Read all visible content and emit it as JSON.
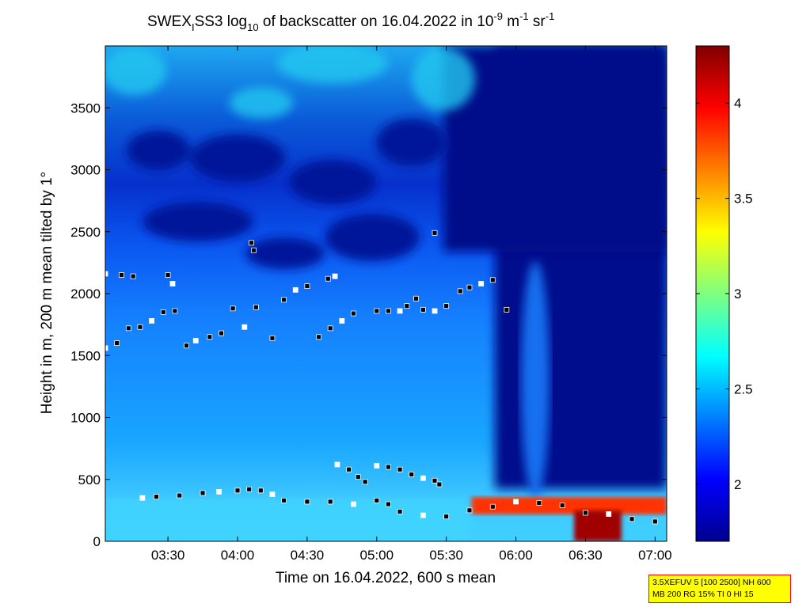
{
  "chart_data": {
    "type": "heatmap",
    "title": {
      "prefix": "SWEX",
      "sub1": "I",
      "mid": "SS3 log",
      "sub2": "10",
      "suffix": " of backscatter on 16.04.2022 in 10",
      "sup1": "-9",
      "unit1": " m",
      "sup2": "-1",
      "unit2": " sr",
      "sup3": "-1"
    },
    "xlabel": "Time on 16.04.2022, 600 s mean",
    "ylabel": "Height in m, 200 m mean tilted by 1°",
    "x_ticks": [
      "03:30",
      "04:00",
      "04:30",
      "05:00",
      "05:30",
      "06:00",
      "06:30",
      "07:00"
    ],
    "x_range_minutes": [
      183,
      425
    ],
    "y_ticks": [
      0,
      500,
      1000,
      1500,
      2000,
      2500,
      3000,
      3500
    ],
    "y_range": [
      0,
      4000
    ],
    "colorbar": {
      "ticks": [
        "2",
        "2.5",
        "3",
        "3.5",
        "4"
      ],
      "range": [
        1.7,
        4.3
      ]
    },
    "colors": {
      "low": "#00008f",
      "mid": "#00ffff",
      "high": "#800000"
    },
    "layers": [
      {
        "name": "cloud-base-1",
        "points": [
          [
            183,
            1560
          ],
          [
            188,
            1600
          ],
          [
            193,
            1720
          ],
          [
            198,
            1730
          ],
          [
            203,
            1780
          ],
          [
            208,
            1850
          ],
          [
            213,
            1860
          ],
          [
            218,
            1580
          ],
          [
            222,
            1620
          ],
          [
            228,
            1650
          ],
          [
            233,
            1680
          ],
          [
            238,
            1880
          ],
          [
            243,
            1730
          ],
          [
            248,
            1890
          ],
          [
            255,
            1640
          ],
          [
            260,
            1950
          ],
          [
            265,
            2030
          ],
          [
            270,
            2060
          ],
          [
            275,
            1650
          ],
          [
            280,
            1720
          ],
          [
            285,
            1780
          ],
          [
            290,
            1840
          ],
          [
            300,
            1860
          ],
          [
            305,
            1860
          ],
          [
            310,
            1860
          ],
          [
            313,
            1900
          ],
          [
            317,
            1960
          ],
          [
            320,
            1870
          ],
          [
            325,
            1860
          ],
          [
            330,
            1900
          ],
          [
            336,
            2020
          ],
          [
            340,
            2050
          ],
          [
            345,
            2080
          ],
          [
            350,
            2110
          ],
          [
            356,
            1870
          ]
        ]
      },
      {
        "name": "cloud-top-1",
        "points": [
          [
            183,
            2160
          ],
          [
            190,
            2150
          ],
          [
            195,
            2140
          ],
          [
            210,
            2150
          ],
          [
            212,
            2080
          ],
          [
            246,
            2410
          ],
          [
            247,
            2350
          ],
          [
            279,
            2120
          ],
          [
            282,
            2140
          ],
          [
            325,
            2490
          ]
        ]
      },
      {
        "name": "boundary-layer",
        "points": [
          [
            199,
            350
          ],
          [
            205,
            360
          ],
          [
            215,
            370
          ],
          [
            225,
            390
          ],
          [
            232,
            400
          ],
          [
            240,
            410
          ],
          [
            245,
            420
          ],
          [
            250,
            410
          ],
          [
            255,
            380
          ],
          [
            260,
            330
          ],
          [
            270,
            320
          ],
          [
            280,
            320
          ],
          [
            290,
            300
          ],
          [
            300,
            330
          ],
          [
            305,
            300
          ],
          [
            310,
            240
          ],
          [
            320,
            210
          ],
          [
            330,
            200
          ],
          [
            340,
            250
          ],
          [
            350,
            280
          ],
          [
            360,
            320
          ],
          [
            370,
            310
          ],
          [
            380,
            290
          ],
          [
            390,
            230
          ],
          [
            400,
            220
          ],
          [
            410,
            180
          ],
          [
            420,
            160
          ]
        ]
      },
      {
        "name": "residual-layer",
        "points": [
          [
            283,
            620
          ],
          [
            288,
            580
          ],
          [
            292,
            520
          ],
          [
            295,
            480
          ],
          [
            300,
            610
          ],
          [
            305,
            600
          ],
          [
            310,
            580
          ],
          [
            315,
            540
          ],
          [
            320,
            510
          ],
          [
            325,
            490
          ],
          [
            327,
            460
          ]
        ]
      }
    ]
  }
}
